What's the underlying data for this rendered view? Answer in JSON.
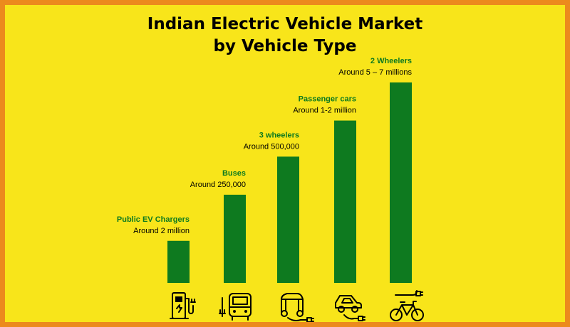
{
  "colors": {
    "background": "#F8E51A",
    "border": "#EC8A1D",
    "bar": "#0E7A1F",
    "category_text": "#0E7A1F",
    "value_text": "#000000"
  },
  "chart_data": {
    "type": "bar",
    "title_lines": [
      "Indian Electric Vehicle Market",
      "by Vehicle Type"
    ],
    "categories": [
      "Public EV Chargers",
      "Buses",
      "3 wheelers",
      "Passenger cars",
      "2 Wheelers"
    ],
    "value_labels": [
      "Around 2 million",
      "Around 250,000",
      "Around 500,000",
      "Around 1-2 million",
      "Around 5 – 7 millions"
    ],
    "relative_heights": [
      0.21,
      0.44,
      0.63,
      0.81,
      1.0
    ],
    "icons": [
      "ev-charger-icon",
      "electric-bus-icon",
      "electric-rickshaw-icon",
      "electric-car-icon",
      "electric-bicycle-icon"
    ],
    "grid": false,
    "legend": "none"
  }
}
